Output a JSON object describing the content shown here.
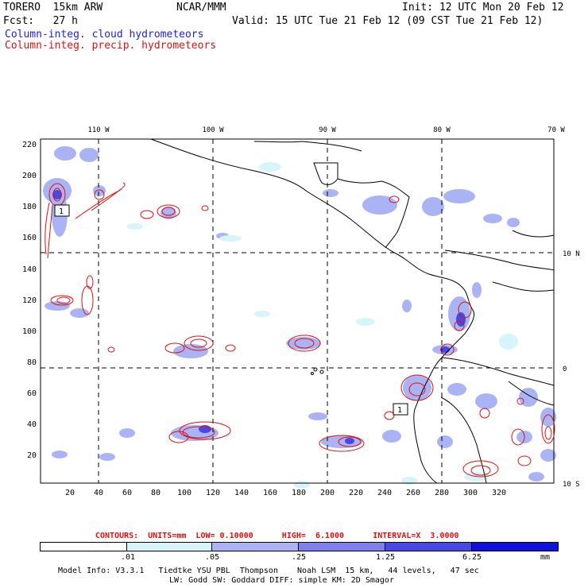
{
  "header": {
    "model": "TORERO  15km ARW",
    "org": "NCAR/MMM",
    "init": "Init: 12 UTC Mon 20 Feb 12",
    "fcst": "Fcst:   27 h",
    "valid": "Valid: 15 UTC Tue 21 Feb 12 (09 CST Tue 21 Feb 12)",
    "field_cloud": "Column-integ. cloud hydrometeors",
    "field_precip": "Column-integ. precip. hydrometeors"
  },
  "colors": {
    "cloud": "#2020e0",
    "precip": "#e01010",
    "shade": [
      "#ffffff",
      "#d8f4fb",
      "#aab4f4",
      "#7e80ec",
      "#4848e6",
      "#1010e0"
    ]
  },
  "lon_labels": [
    "110 W",
    "100 W",
    "90 W",
    "80 W",
    "70 W"
  ],
  "lat_labels": [
    "10 N",
    "0",
    "10 S"
  ],
  "y_ticks": [
    "220",
    "200",
    "180",
    "160",
    "140",
    "120",
    "100",
    "80",
    "60",
    "40",
    "20"
  ],
  "x_ticks": [
    "20",
    "40",
    "60",
    "80",
    "100",
    "120",
    "140",
    "160",
    "180",
    "200",
    "220",
    "240",
    "260",
    "280",
    "300",
    "320"
  ],
  "contour_labels": [
    "1",
    "1"
  ],
  "contours_line": {
    "label": "CONTOURS:  UNITS=mm  LOW= 0.10000      HIGH=  6.1000      INTERVAL=X  3.0000"
  },
  "colorbar": {
    "labels": [
      ".01",
      ".05",
      ".25",
      "1.25",
      "6.25"
    ],
    "units": "mm"
  },
  "footer": {
    "line1": "Model Info: V3.3.1   Tiedtke YSU PBL  Thompson    Noah LSM  15 km,   44 levels,   47 sec",
    "line2": "LW: Godd SW: Goddard DIFF: simple KM: 2D Smagor"
  }
}
